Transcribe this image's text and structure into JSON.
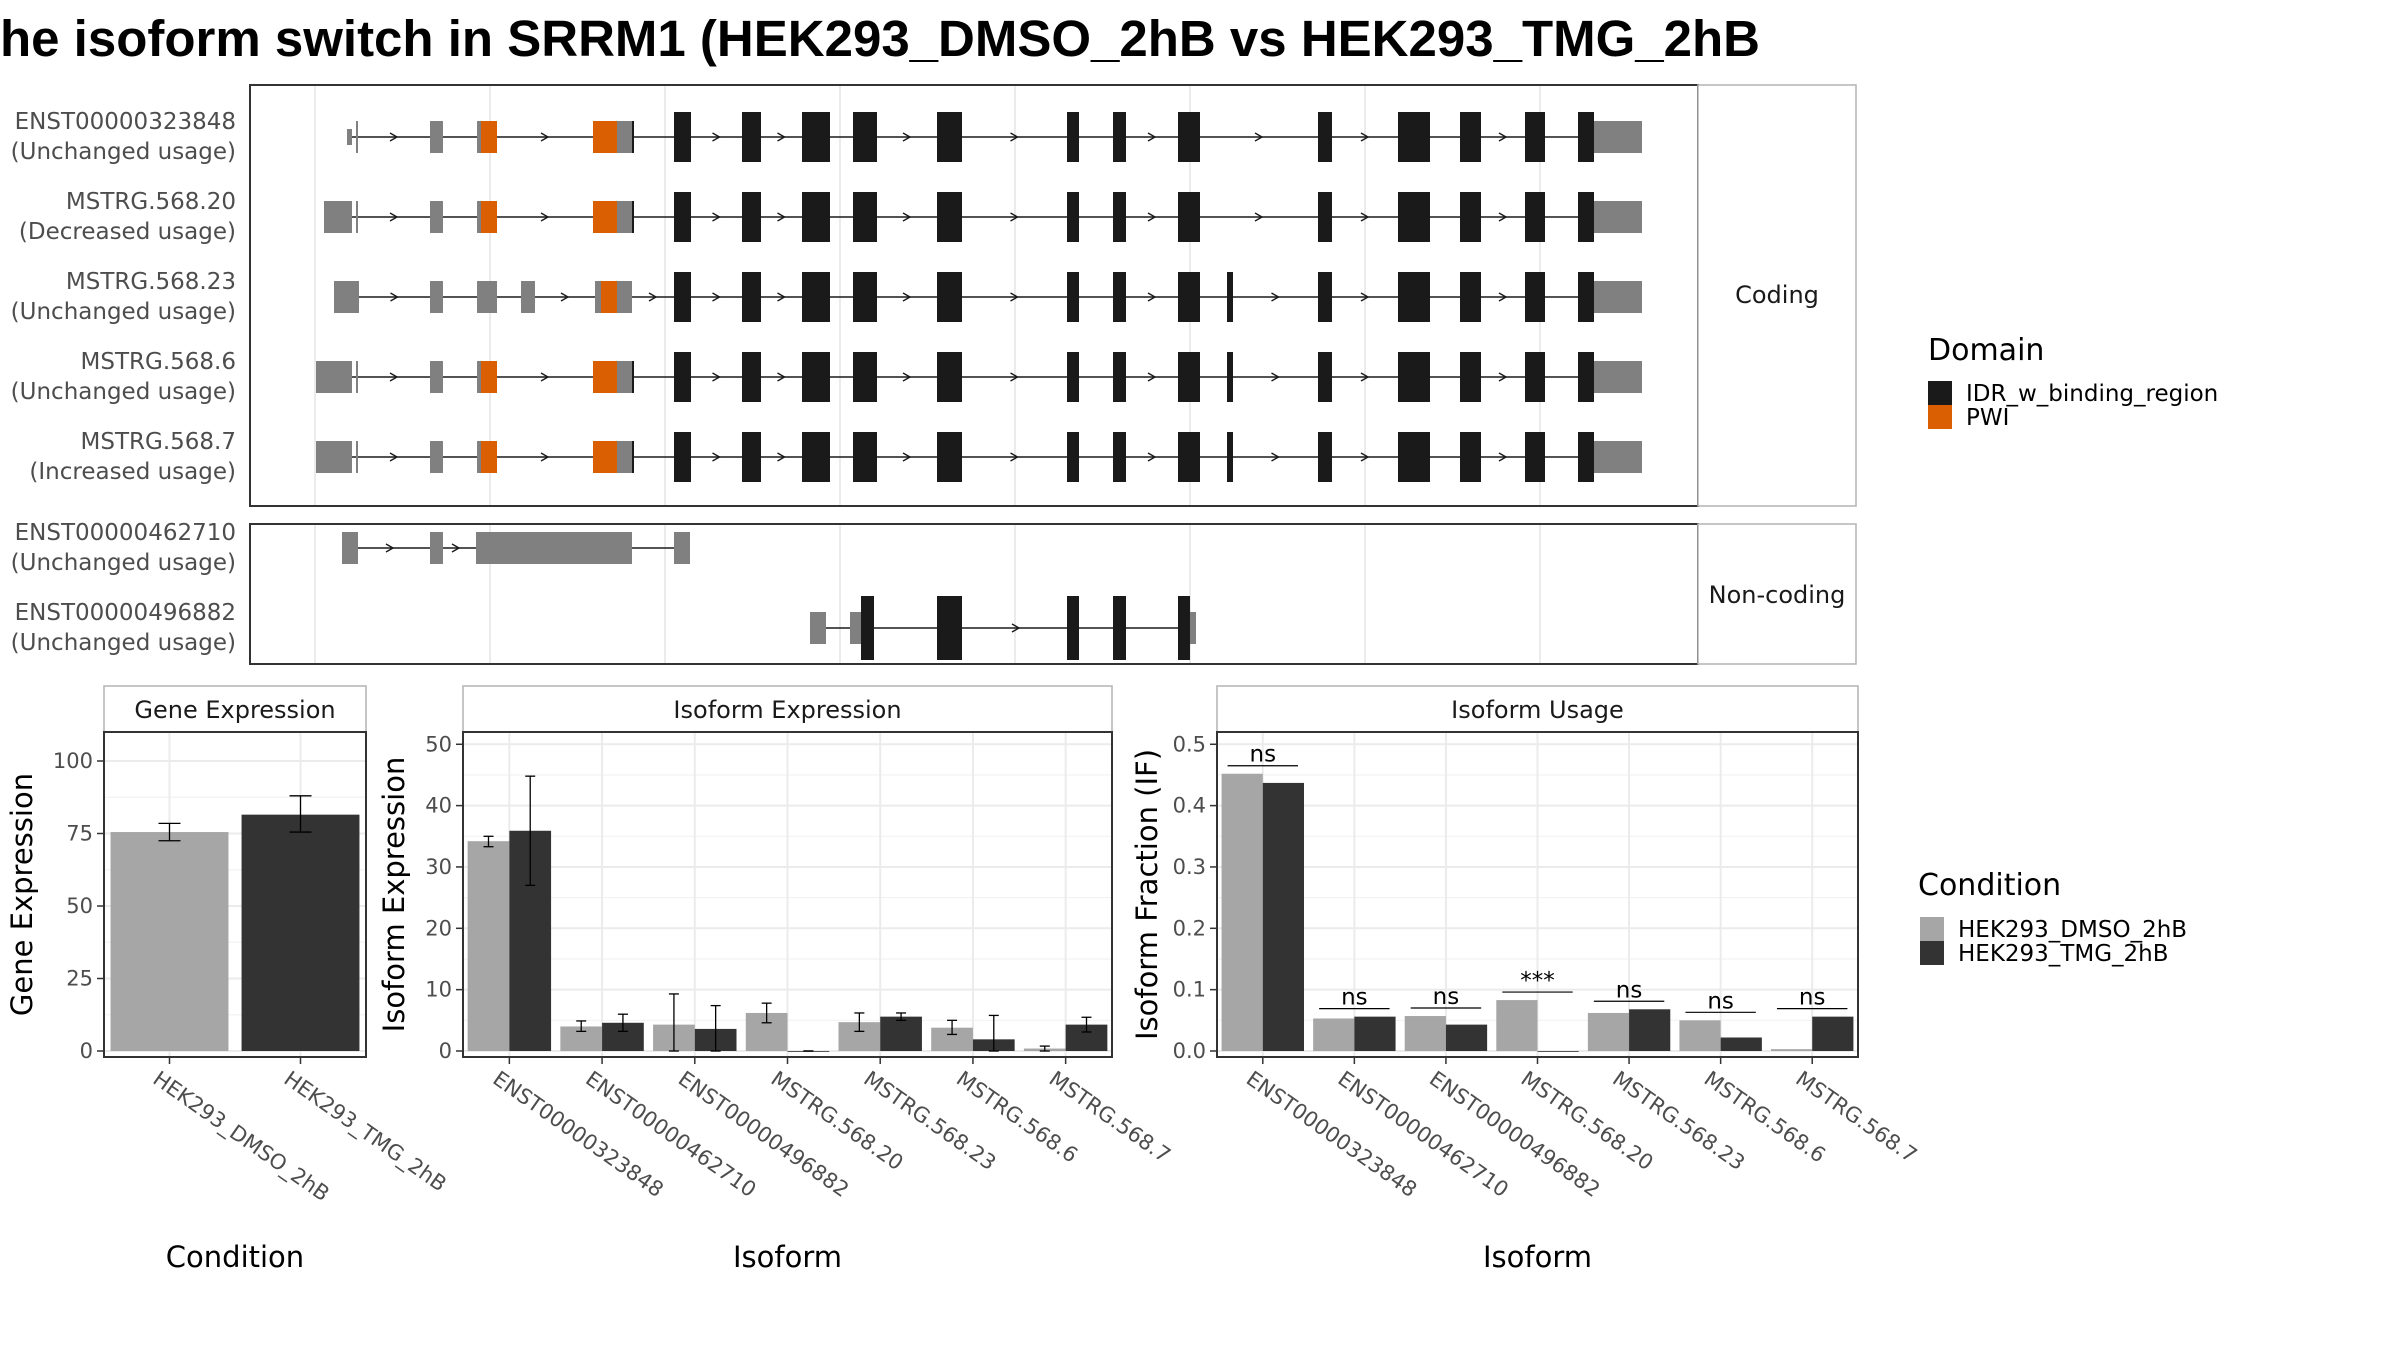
{
  "title": "he isoform switch in SRRM1 (HEK293_DMSO_2hB vs HEK293_TMG_2hB",
  "colors": {
    "utr": "#808080",
    "idr": "#1a1a1a",
    "pwi": "#d95f02",
    "dmso": "#a6a6a6",
    "tmg": "#333333",
    "grid": "#ebebeb",
    "panel_border": "#333333"
  },
  "structure": {
    "coding_label": "Coding",
    "noncoding_label": "Non-coding",
    "coding": [
      {
        "id": "ENST00000323848",
        "usage": "(Unchanged usage)"
      },
      {
        "id": "MSTRG.568.20",
        "usage": "(Decreased usage)"
      },
      {
        "id": "MSTRG.568.23",
        "usage": "(Unchanged usage)"
      },
      {
        "id": "MSTRG.568.6",
        "usage": "(Unchanged usage)"
      },
      {
        "id": "MSTRG.568.7",
        "usage": "(Increased usage)"
      }
    ],
    "noncoding": [
      {
        "id": "ENST00000462710",
        "usage": "(Unchanged usage)"
      },
      {
        "id": "ENST00000496882",
        "usage": "(Unchanged usage)"
      }
    ]
  },
  "domain_legend": {
    "title": "Domain",
    "items": [
      {
        "label": "IDR_w_binding_region",
        "color": "#1a1a1a"
      },
      {
        "label": "PWI",
        "color": "#d95f02"
      }
    ]
  },
  "condition_legend": {
    "title": "Condition",
    "items": [
      {
        "label": "HEK293_DMSO_2hB",
        "color": "#a6a6a6"
      },
      {
        "label": "HEK293_TMG_2hB",
        "color": "#333333"
      }
    ]
  },
  "chart_data": [
    {
      "type": "bar",
      "title": "Gene Expression",
      "xlabel": "Condition",
      "ylabel": "Gene Expression",
      "categories": [
        "HEK293_DMSO_2hB",
        "HEK293_TMG_2hB"
      ],
      "values": [
        75.5,
        81.5
      ],
      "error_low": [
        72.5,
        75.5
      ],
      "error_high": [
        78.5,
        88.0
      ],
      "ylim": [
        0,
        110
      ],
      "yticks": [
        0,
        25,
        50,
        75,
        100
      ]
    },
    {
      "type": "bar",
      "title": "Isoform Expression",
      "xlabel": "Isoform",
      "ylabel": "Isoform Expression",
      "categories": [
        "ENST00000323848",
        "ENST00000462710",
        "ENST00000496882",
        "MSTRG.568.20",
        "MSTRG.568.23",
        "MSTRG.568.6",
        "MSTRG.568.7"
      ],
      "series": [
        {
          "name": "HEK293_DMSO_2hB",
          "values": [
            34.2,
            4.0,
            4.3,
            6.2,
            4.7,
            3.8,
            0.4
          ],
          "error_low": [
            33.3,
            3.2,
            0.0,
            4.6,
            3.2,
            2.7,
            0.0
          ],
          "error_high": [
            35.0,
            4.9,
            9.3,
            7.8,
            6.2,
            5.0,
            0.8
          ]
        },
        {
          "name": "HEK293_TMG_2hB",
          "values": [
            35.9,
            4.6,
            3.6,
            0.0,
            5.6,
            1.9,
            4.3
          ],
          "error_low": [
            27.0,
            3.2,
            0.0,
            0.0,
            5.0,
            0.0,
            3.1
          ],
          "error_high": [
            44.8,
            6.0,
            7.4,
            0.0,
            6.2,
            5.8,
            5.5
          ]
        }
      ],
      "ylim": [
        0,
        52
      ],
      "yticks": [
        0,
        10,
        20,
        30,
        40,
        50
      ]
    },
    {
      "type": "bar",
      "title": "Isoform Usage",
      "xlabel": "Isoform",
      "ylabel": "Isoform Fraction (IF)",
      "categories": [
        "ENST00000323848",
        "ENST00000462710",
        "ENST00000496882",
        "MSTRG.568.20",
        "MSTRG.568.23",
        "MSTRG.568.6",
        "MSTRG.568.7"
      ],
      "series": [
        {
          "name": "HEK293_DMSO_2hB",
          "values": [
            0.452,
            0.053,
            0.057,
            0.083,
            0.062,
            0.05,
            0.003
          ]
        },
        {
          "name": "HEK293_TMG_2hB",
          "values": [
            0.437,
            0.056,
            0.043,
            0.0,
            0.068,
            0.022,
            0.056
          ]
        }
      ],
      "significance": [
        "ns",
        "ns",
        "ns",
        "***",
        "ns",
        "ns",
        "ns"
      ],
      "ylim": [
        0,
        0.52
      ],
      "yticks": [
        0.0,
        0.1,
        0.2,
        0.3,
        0.4,
        0.5
      ]
    }
  ]
}
